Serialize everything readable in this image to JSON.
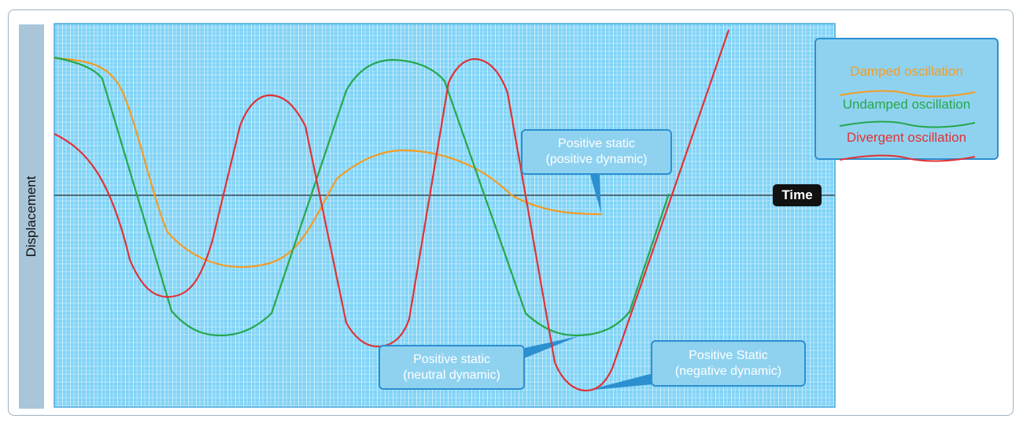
{
  "title": "",
  "axes": {
    "y_label": "Displacement",
    "x_label": "Time"
  },
  "legend": {
    "items": [
      {
        "label": "Damped oscillation",
        "color": "#f39c25"
      },
      {
        "label": "Undamped oscillation",
        "color": "#25a84b"
      },
      {
        "label": "Divergent oscillation",
        "color": "#e03236"
      }
    ]
  },
  "callouts": {
    "damped": {
      "line1": "Positive static",
      "line2": "(positive dynamic)"
    },
    "undamped": {
      "line1": "Positive static",
      "line2": "(neutral dynamic)"
    },
    "divergent": {
      "line1": "Positive Static",
      "line2": "(negative dynamic)"
    }
  },
  "colors": {
    "grid_background": "#7fd3f7",
    "grid_line": "#e8f7ff",
    "callout_fill": "#8fd2f0",
    "callout_border": "#2c8fd0",
    "axis_line": "#333333"
  }
}
